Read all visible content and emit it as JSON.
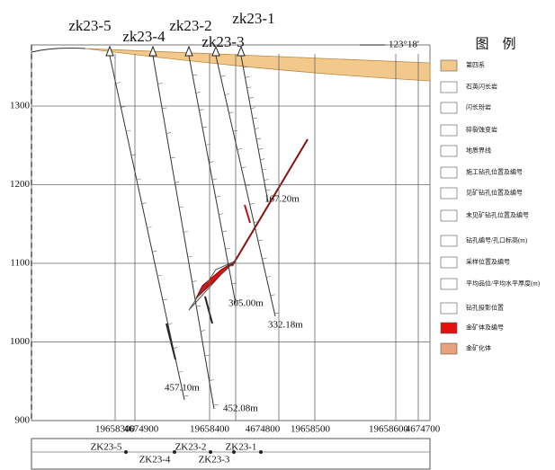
{
  "header": {
    "bearing": "123°18′"
  },
  "holes": [
    {
      "label": "zk23-5",
      "depth": "457.10m"
    },
    {
      "label": "zk23-4",
      "depth": "452.08m"
    },
    {
      "label": "zk23-2",
      "depth": "305.00m"
    },
    {
      "label": "zk23-3",
      "depth": "332.18m"
    },
    {
      "label": "zk23-1",
      "depth": "167.20m"
    }
  ],
  "elevations": [
    900,
    1000,
    1100,
    1200,
    1300
  ],
  "coordinates": [
    "19658300",
    "4674900",
    "19658400",
    "4674800",
    "19658500",
    "19658600",
    "4674700"
  ],
  "legend": {
    "title": "图　例",
    "items": [
      "第四系",
      "石英闪长岩",
      "闪长玢岩",
      "碎裂蚀变岩",
      "地质界线",
      "施工钻孔位置及编号",
      "见矿钻孔位置及编号",
      "未见矿钻孔位置及编号",
      "钻孔编号/孔口标高(m)",
      "采样位置及编号",
      "平均品位/平均水平厚度(m)",
      "钻孔投影位置",
      "金矿体及编号",
      "金矿化体"
    ]
  },
  "plan": {
    "holes": [
      "ZK23-5",
      "ZK23-4",
      "ZK23-2",
      "ZK23-3",
      "ZK23-1"
    ]
  }
}
